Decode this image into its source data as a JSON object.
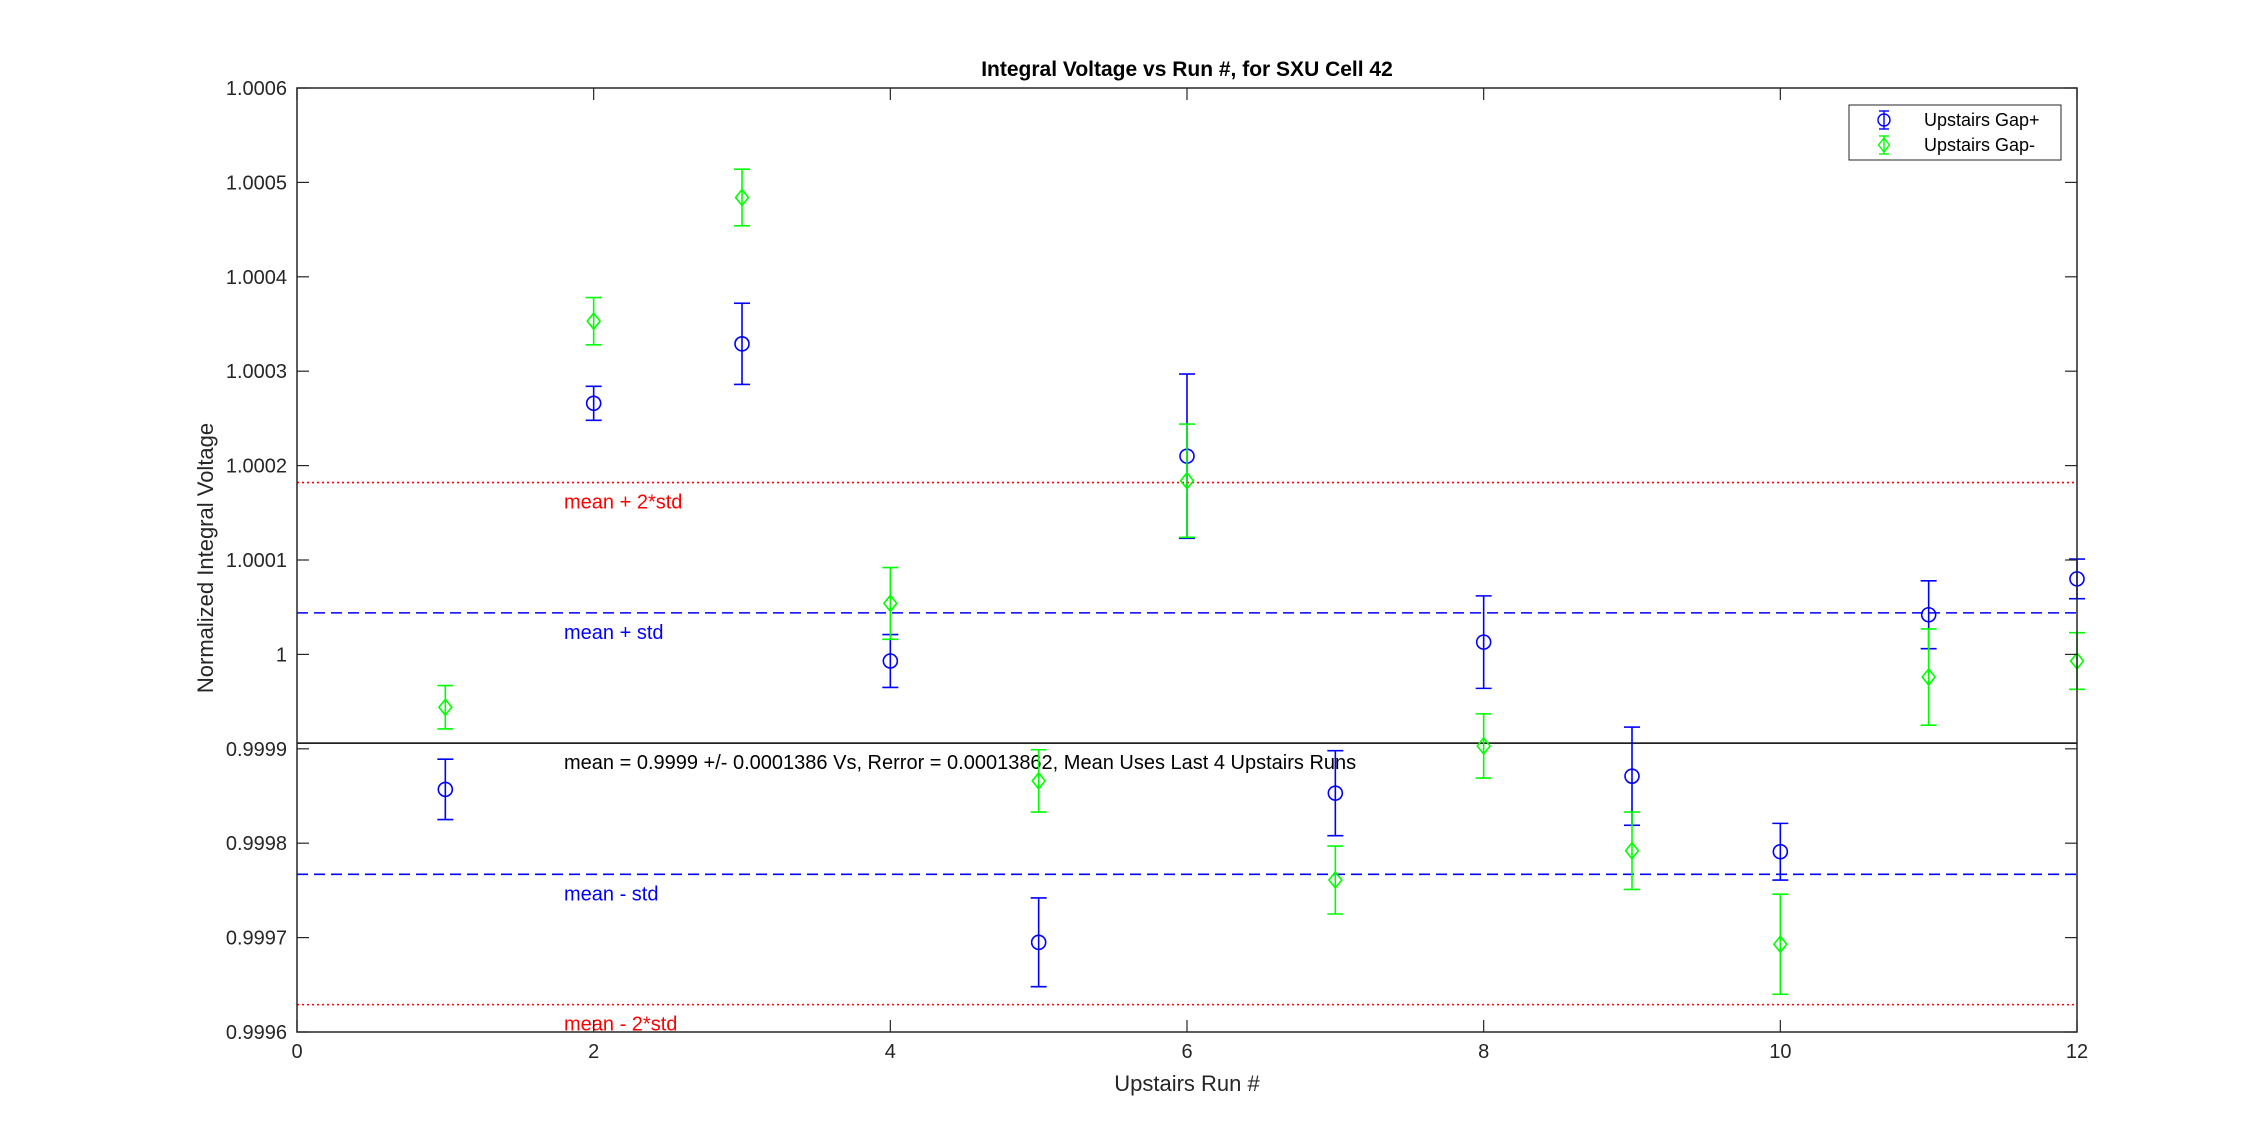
{
  "chart_data": {
    "type": "scatter",
    "title": "Integral Voltage vs Run #, for SXU Cell 42",
    "xlabel": "Upstairs Run #",
    "ylabel": "Normalized Integral Voltage",
    "xlim": [
      0,
      12
    ],
    "ylim": [
      0.9996,
      1.0006
    ],
    "xticks": [
      0,
      2,
      4,
      6,
      8,
      10,
      12
    ],
    "xtick_labels": [
      "0",
      "2",
      "4",
      "6",
      "8",
      "10",
      "12"
    ],
    "yticks": [
      0.9996,
      0.9997,
      0.9998,
      0.9999,
      1.0,
      1.0001,
      1.0002,
      1.0003,
      1.0004,
      1.0005,
      1.0006
    ],
    "ytick_labels": [
      "0.9996",
      "0.9997",
      "0.9998",
      "0.9999",
      "1",
      "1.0001",
      "1.0002",
      "1.0003",
      "1.0004",
      "1.0005",
      "1.0006"
    ],
    "grid": false,
    "legend_position": "top-right",
    "series": [
      {
        "name": "Upstairs Gap+",
        "color": "#0000ff",
        "marker": "circle",
        "x": [
          1,
          2,
          3,
          4,
          5,
          6,
          7,
          8,
          9,
          10,
          11,
          12
        ],
        "y": [
          0.999857,
          1.000266,
          1.000329,
          0.999993,
          0.999695,
          1.00021,
          0.999853,
          1.000013,
          0.999871,
          0.999791,
          1.000042,
          1.00008
        ],
        "err": [
          3.2e-05,
          1.8e-05,
          4.3e-05,
          2.8e-05,
          4.7e-05,
          8.7e-05,
          4.5e-05,
          4.9e-05,
          5.2e-05,
          3e-05,
          3.6e-05,
          2.1e-05
        ]
      },
      {
        "name": "Upstairs Gap-",
        "color": "#00ff00",
        "marker": "diamond",
        "x": [
          1,
          2,
          3,
          4,
          5,
          6,
          7,
          8,
          9,
          10,
          11,
          12
        ],
        "y": [
          0.999944,
          1.000353,
          1.000484,
          1.000054,
          0.999866,
          1.000184,
          0.999761,
          0.999903,
          0.999792,
          0.999693,
          0.999976,
          0.999993
        ],
        "err": [
          2.3e-05,
          2.5e-05,
          3e-05,
          3.8e-05,
          3.3e-05,
          6e-05,
          3.6e-05,
          3.4e-05,
          4.1e-05,
          5.3e-05,
          5.1e-05,
          3e-05
        ]
      }
    ],
    "reference_lines": [
      {
        "y": 1.000182,
        "style": "dotted",
        "color": "#ff0000",
        "label": "mean + 2*std"
      },
      {
        "y": 1.000044,
        "style": "dashed",
        "color": "#0000ff",
        "label": "mean + std"
      },
      {
        "y": 0.999906,
        "style": "solid",
        "color": "#000000",
        "label": "mean = 0.9999 +/- 0.0001386 Vs, Rerror = 0.00013862, Mean Uses Last 4 Upstairs Runs"
      },
      {
        "y": 0.999767,
        "style": "dashed",
        "color": "#0000ff",
        "label": "mean - std"
      },
      {
        "y": 0.999629,
        "style": "dotted",
        "color": "#ff0000",
        "label": "mean - 2*std"
      }
    ],
    "annotation_x": 1.8
  }
}
